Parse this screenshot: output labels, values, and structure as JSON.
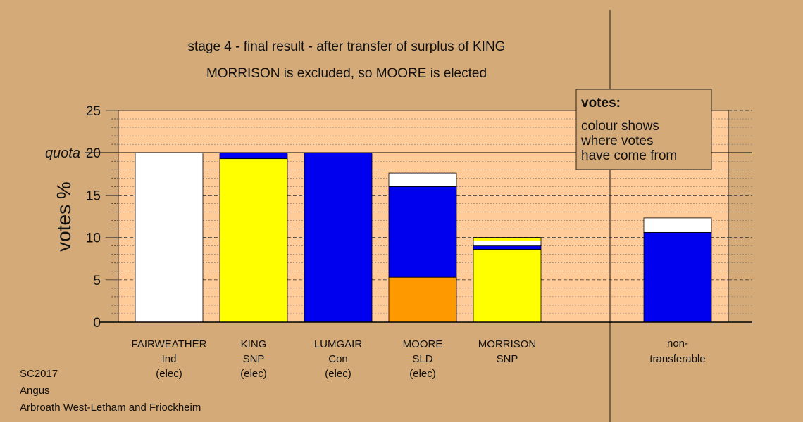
{
  "chart_data": {
    "type": "bar",
    "title": "stage 4 - final result - after transfer of surplus of KING",
    "subtitle": "MORRISON is excluded, so MOORE is elected",
    "ylabel": "votes %",
    "ylim": [
      0,
      25
    ],
    "yticks": [
      "0",
      "5",
      "10",
      "15",
      "20",
      "25"
    ],
    "quota": 20,
    "quota_label": "quota",
    "colors": {
      "plot_bg": "#ffcc99",
      "white": "#ffffff",
      "yellow": "#ffff00",
      "blue": "#0000ee",
      "orange": "#ff9900"
    },
    "candidates": [
      {
        "name": "FAIRWEATHER",
        "party": "Ind",
        "status": "(elec)",
        "segments": [
          {
            "color": "white",
            "value": 20.0
          }
        ]
      },
      {
        "name": "KING",
        "party": "SNP",
        "status": "(elec)",
        "segments": [
          {
            "color": "yellow",
            "value": 19.3
          },
          {
            "color": "blue",
            "value": 0.7
          }
        ]
      },
      {
        "name": "LUMGAIR",
        "party": "Con",
        "status": "(elec)",
        "segments": [
          {
            "color": "blue",
            "value": 20.0
          }
        ]
      },
      {
        "name": "MOORE",
        "party": "SLD",
        "status": "(elec)",
        "segments": [
          {
            "color": "orange",
            "value": 5.3
          },
          {
            "color": "blue",
            "value": 10.7
          },
          {
            "color": "white",
            "value": 1.6
          }
        ]
      },
      {
        "name": "MORRISON",
        "party": "SNP",
        "status": "",
        "segments": [
          {
            "color": "yellow",
            "value": 8.6
          },
          {
            "color": "blue",
            "value": 0.4
          },
          {
            "color": "white",
            "value": 0.6
          },
          {
            "color": "yellow",
            "value": 0.4
          }
        ]
      }
    ],
    "nontransferable": {
      "name": "non-",
      "name2": "transferable",
      "segments": [
        {
          "color": "blue",
          "value": 10.6
        },
        {
          "color": "white",
          "value": 1.7
        }
      ]
    },
    "legend": {
      "title": "votes:",
      "lines": [
        "colour shows",
        "where votes",
        "have come from"
      ]
    }
  },
  "footer": {
    "line1": "SC2017",
    "line2": "Angus",
    "line3": "Arbroath West-Letham and Friockheim"
  }
}
